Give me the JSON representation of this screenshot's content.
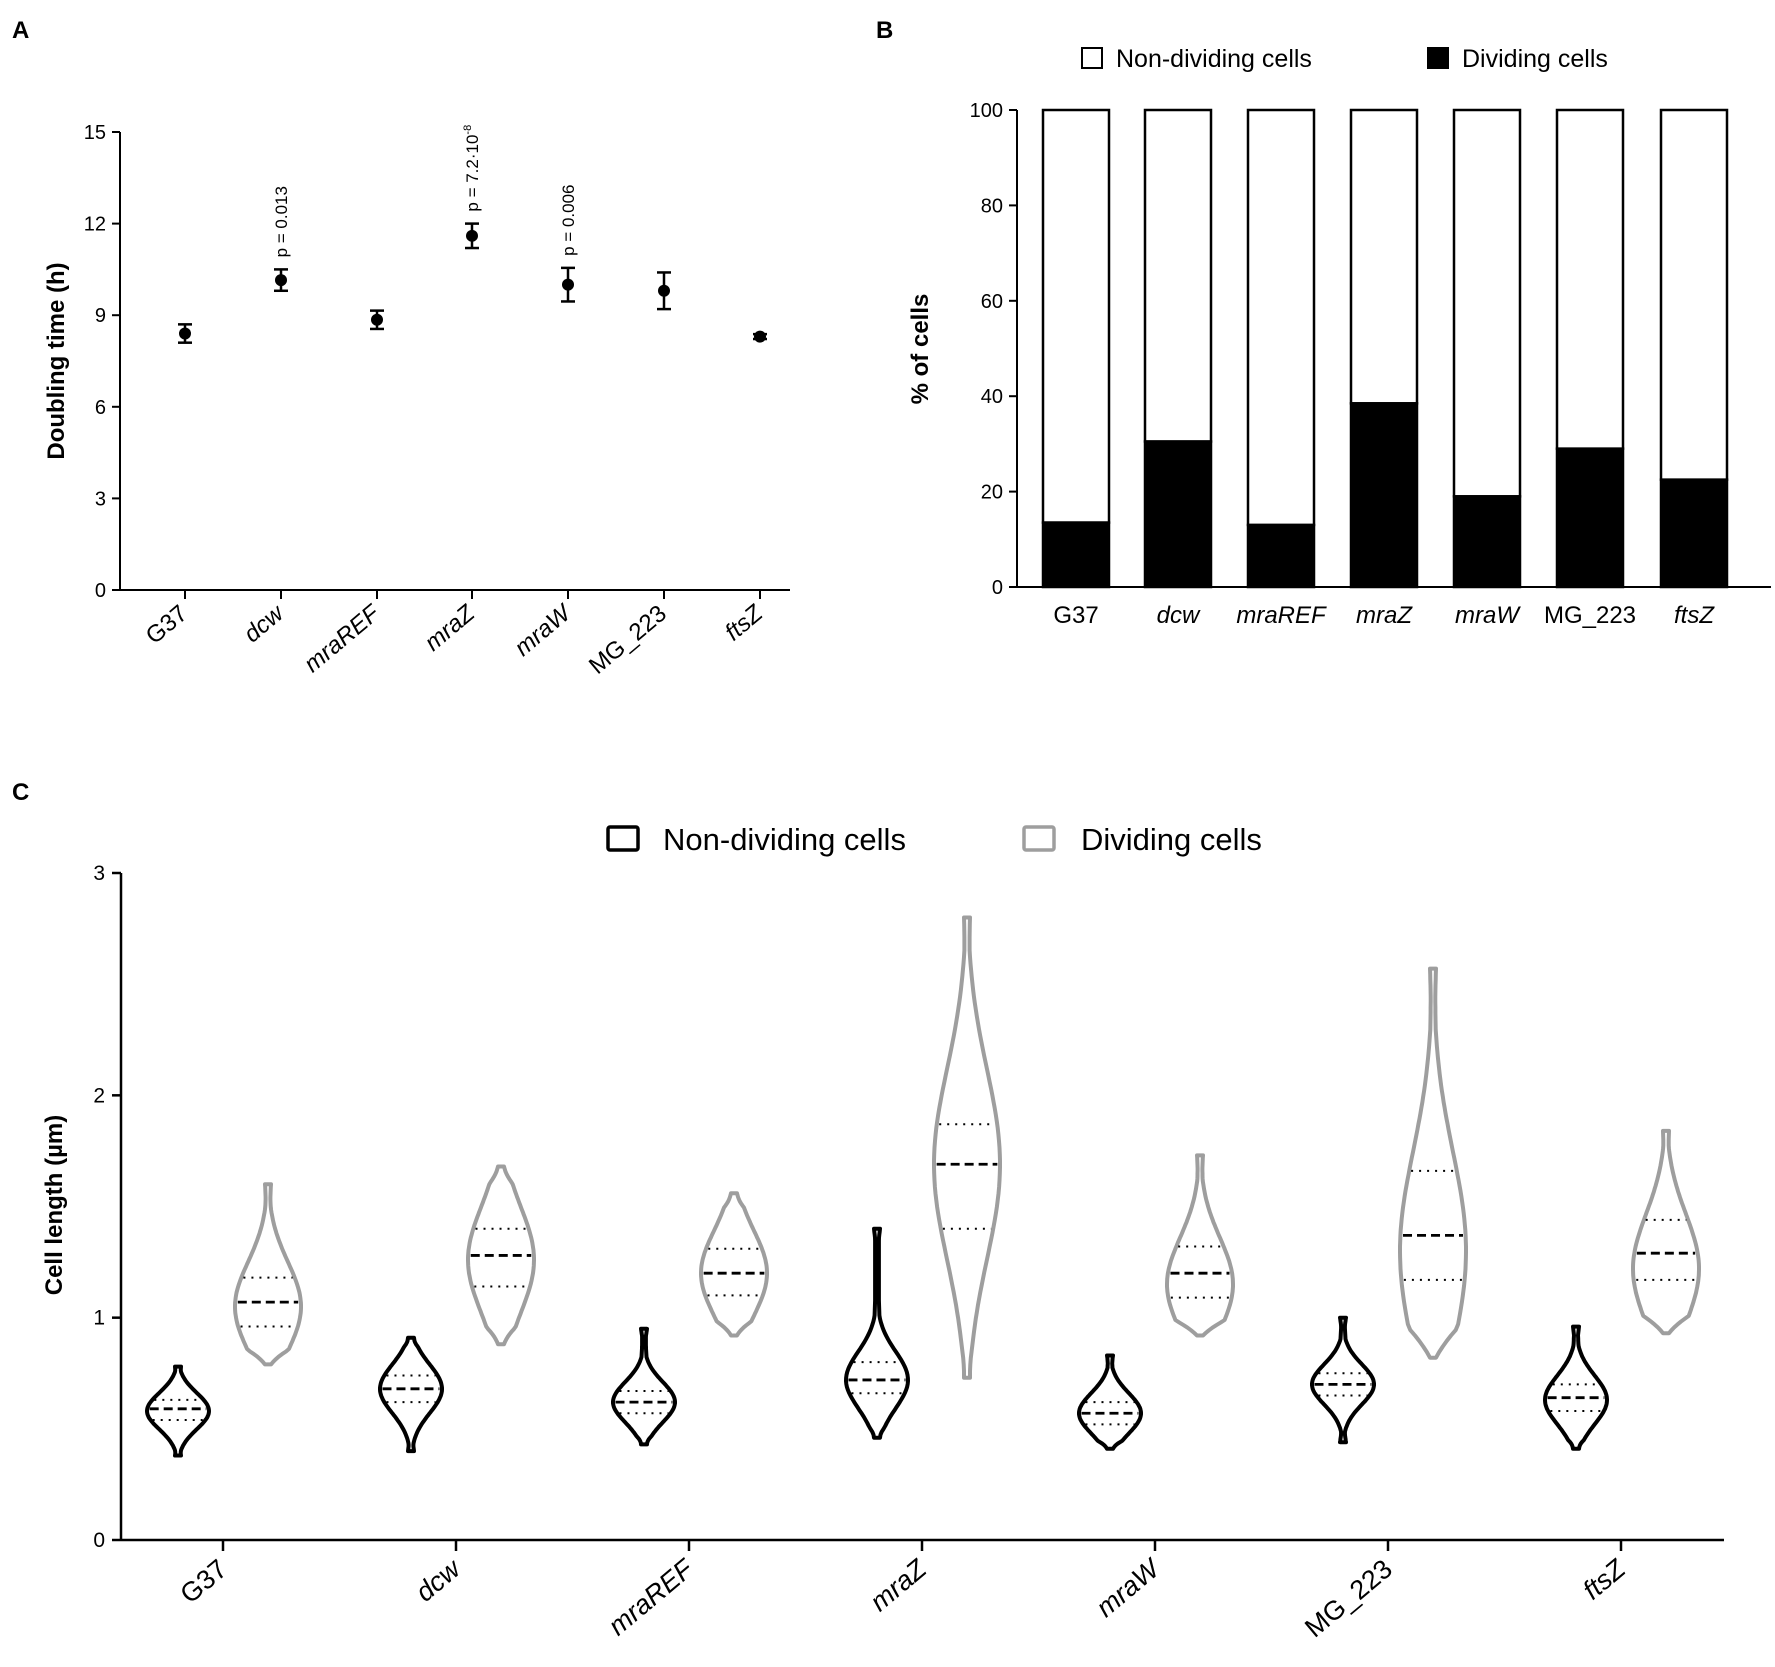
{
  "chart_data": [
    {
      "panel": "A",
      "type": "scatter",
      "title": "",
      "xlabel": "",
      "ylabel": "Doubling time (h)",
      "ylim": [
        0,
        15
      ],
      "yticks": [
        "0",
        "3",
        "6",
        "9",
        "12",
        "15"
      ],
      "categories": [
        "G37",
        "dcw",
        "mraREF",
        "mraZ",
        "mraW",
        "MG_223",
        "ftsZ"
      ],
      "italic": [
        false,
        true,
        true,
        true,
        true,
        false,
        true
      ],
      "values": [
        8.4,
        10.15,
        8.85,
        11.6,
        10.0,
        9.8,
        8.3
      ],
      "errors": [
        0.3,
        0.35,
        0.3,
        0.4,
        0.55,
        0.6,
        0.08
      ],
      "annotations": [
        {
          "category": "dcw",
          "text": "p = 0.013"
        },
        {
          "category": "mraZ",
          "text": "p = 7.2·10",
          "sup": "-8"
        },
        {
          "category": "mraW",
          "text": "p = 0.006"
        }
      ]
    },
    {
      "panel": "B",
      "type": "bar",
      "stacked": true,
      "title": "",
      "xlabel": "",
      "ylabel": "% of cells",
      "ylim": [
        0,
        100
      ],
      "yticks": [
        "0",
        "20",
        "40",
        "60",
        "80",
        "100"
      ],
      "categories": [
        "G37",
        "dcw",
        "mraREF",
        "mraZ",
        "mraW",
        "MG_223",
        "ftsZ"
      ],
      "italic": [
        false,
        true,
        true,
        true,
        true,
        false,
        true
      ],
      "legend_position": "top",
      "series": [
        {
          "name": "Non-dividing cells",
          "color": "#ffffff",
          "values": [
            86.5,
            69.5,
            87,
            61.5,
            81,
            71,
            77.5
          ]
        },
        {
          "name": "Dividing cells",
          "color": "#000000",
          "values": [
            13.5,
            30.5,
            13,
            38.5,
            19,
            29,
            22.5
          ]
        }
      ]
    },
    {
      "panel": "C",
      "type": "violin",
      "title": "",
      "xlabel": "",
      "ylabel": "Cell length (µm)",
      "ylim": [
        0,
        3
      ],
      "yticks": [
        "0",
        "1",
        "2",
        "3"
      ],
      "categories": [
        "G37",
        "dcw",
        "mraREF",
        "mraZ",
        "mraW",
        "MG_223",
        "ftsZ"
      ],
      "italic": [
        false,
        true,
        true,
        true,
        true,
        false,
        true
      ],
      "legend_position": "top",
      "series": [
        {
          "name": "Non-dividing cells",
          "color": "#000000",
          "min": [
            0.38,
            0.4,
            0.43,
            0.46,
            0.41,
            0.44,
            0.41
          ],
          "q1": [
            0.54,
            0.62,
            0.57,
            0.66,
            0.52,
            0.65,
            0.58
          ],
          "median": [
            0.59,
            0.68,
            0.62,
            0.72,
            0.57,
            0.7,
            0.64
          ],
          "q3": [
            0.63,
            0.74,
            0.67,
            0.8,
            0.62,
            0.75,
            0.7
          ],
          "max": [
            0.78,
            0.91,
            0.95,
            1.4,
            0.83,
            1.0,
            0.96
          ],
          "mode": [
            0.58,
            0.68,
            0.62,
            0.72,
            0.57,
            0.7,
            0.63
          ]
        },
        {
          "name": "Dividing cells",
          "color": "#9e9e9e",
          "min": [
            0.79,
            0.88,
            0.92,
            0.73,
            0.92,
            0.82,
            0.93
          ],
          "q1": [
            0.96,
            1.14,
            1.1,
            1.4,
            1.09,
            1.17,
            1.17
          ],
          "median": [
            1.07,
            1.28,
            1.2,
            1.69,
            1.2,
            1.37,
            1.29
          ],
          "q3": [
            1.18,
            1.4,
            1.31,
            1.87,
            1.32,
            1.66,
            1.44
          ],
          "max": [
            1.6,
            1.68,
            1.56,
            2.8,
            1.73,
            2.57,
            1.84
          ],
          "mode": [
            1.05,
            1.26,
            1.2,
            1.69,
            1.15,
            1.3,
            1.22
          ]
        }
      ]
    }
  ],
  "panels": [
    "A",
    "B",
    "C"
  ]
}
